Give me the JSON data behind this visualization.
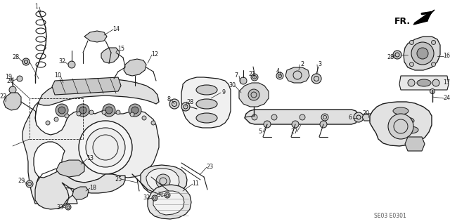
{
  "bg_color": "#ffffff",
  "line_color": "#1a1a1a",
  "text_color": "#1a1a1a",
  "diagram_code": "SE03 E0301",
  "fig_width": 6.4,
  "fig_height": 3.19,
  "dpi": 100,
  "fr_text": "FR.",
  "gray_fill": "#d8d8d8",
  "light_gray": "#eeeeee",
  "mid_gray": "#c8c8c8"
}
